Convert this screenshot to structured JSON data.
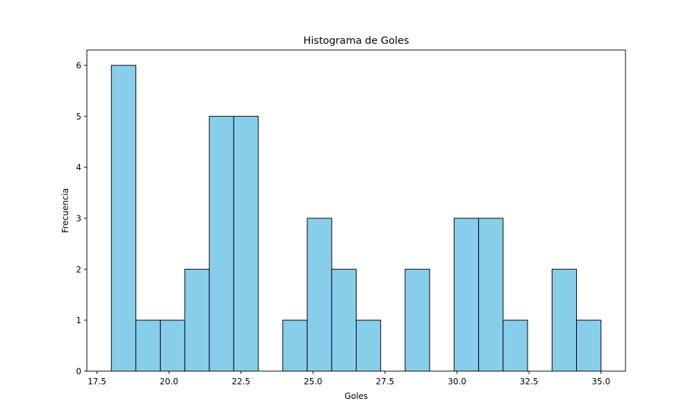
{
  "chart_data": {
    "type": "bar",
    "title": "Histograma de Goles",
    "xlabel": "Goles",
    "ylabel": "Frecuencia",
    "xlim": [
      17.15,
      35.85
    ],
    "ylim": [
      0,
      6.3
    ],
    "grid": false,
    "bin_edges": [
      18.0,
      18.85,
      19.7,
      20.55,
      21.4,
      22.25,
      23.1,
      23.95,
      24.8,
      25.65,
      26.5,
      27.35,
      28.2,
      29.05,
      29.9,
      30.75,
      31.6,
      32.45,
      33.3,
      34.15,
      35.0
    ],
    "values": [
      6,
      1,
      1,
      2,
      5,
      5,
      0,
      1,
      3,
      2,
      1,
      0,
      2,
      0,
      3,
      3,
      1,
      0,
      2,
      1
    ],
    "x_ticks": [
      17.5,
      20.0,
      22.5,
      25.0,
      27.5,
      30.0,
      32.5,
      35.0
    ],
    "x_tick_labels": [
      "17.5",
      "20.0",
      "22.5",
      "25.0",
      "27.5",
      "30.0",
      "32.5",
      "35.0"
    ],
    "y_ticks": [
      0,
      1,
      2,
      3,
      4,
      5,
      6
    ],
    "y_tick_labels": [
      "0",
      "1",
      "2",
      "3",
      "4",
      "5",
      "6"
    ],
    "bar_color": "#87ceeb",
    "edge_color": "#000000"
  }
}
